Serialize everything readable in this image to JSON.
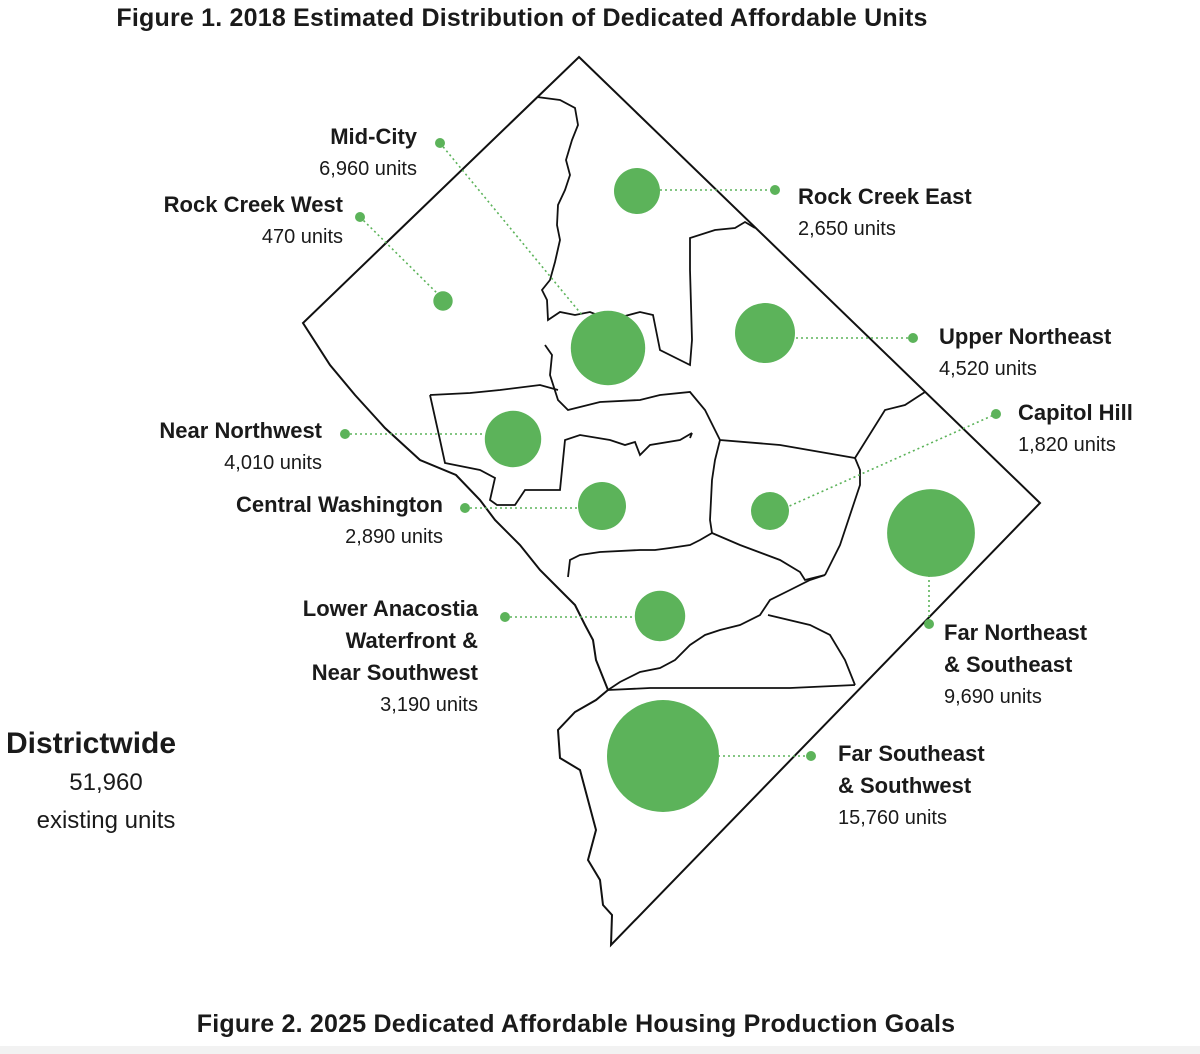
{
  "figure1": {
    "title": "Figure 1. 2018 Estimated Distribution of Dedicated Affordable Units"
  },
  "figure2": {
    "title": "Figure 2. 2025 Dedicated Affordable Housing Production Goals"
  },
  "districtwide": {
    "label": "Districtwide",
    "value": "51,960",
    "caption": "existing units"
  },
  "colors": {
    "bubble": "#5cb35a",
    "boundary": "#111111"
  },
  "regions": [
    {
      "id": "mid-city",
      "name": "Mid-City",
      "units": "6,960  units",
      "value": 6960
    },
    {
      "id": "rock-creek-west",
      "name": "Rock Creek West",
      "units": "470 units",
      "value": 470
    },
    {
      "id": "rock-creek-east",
      "name": "Rock Creek East",
      "units": "2,650 units",
      "value": 2650
    },
    {
      "id": "upper-northeast",
      "name": "Upper Northeast",
      "units": "4,520 units",
      "value": 4520
    },
    {
      "id": "near-northwest",
      "name": "Near Northwest",
      "units": "4,010 units",
      "value": 4010
    },
    {
      "id": "capitol-hill",
      "name": "Capitol Hill",
      "units": "1,820 units",
      "value": 1820
    },
    {
      "id": "central-washington",
      "name": "Central Washington",
      "units": "2,890 units",
      "value": 2890
    },
    {
      "id": "lower-anacostia",
      "name": "Lower Anacostia Waterfront & Near Southwest",
      "name_lines": [
        "Lower Anacostia",
        "Waterfront &",
        "Near Southwest"
      ],
      "units": "3,190 units",
      "value": 3190
    },
    {
      "id": "far-northeast",
      "name": "Far Northeast & Southeast",
      "name_lines": [
        "Far Northeast",
        "& Southeast"
      ],
      "units": "9,690 units",
      "value": 9690
    },
    {
      "id": "far-southeast",
      "name": "Far Southeast & Southwest",
      "name_lines": [
        "Far Southeast",
        "& Southwest"
      ],
      "units": "15,760 units",
      "value": 15760
    }
  ]
}
